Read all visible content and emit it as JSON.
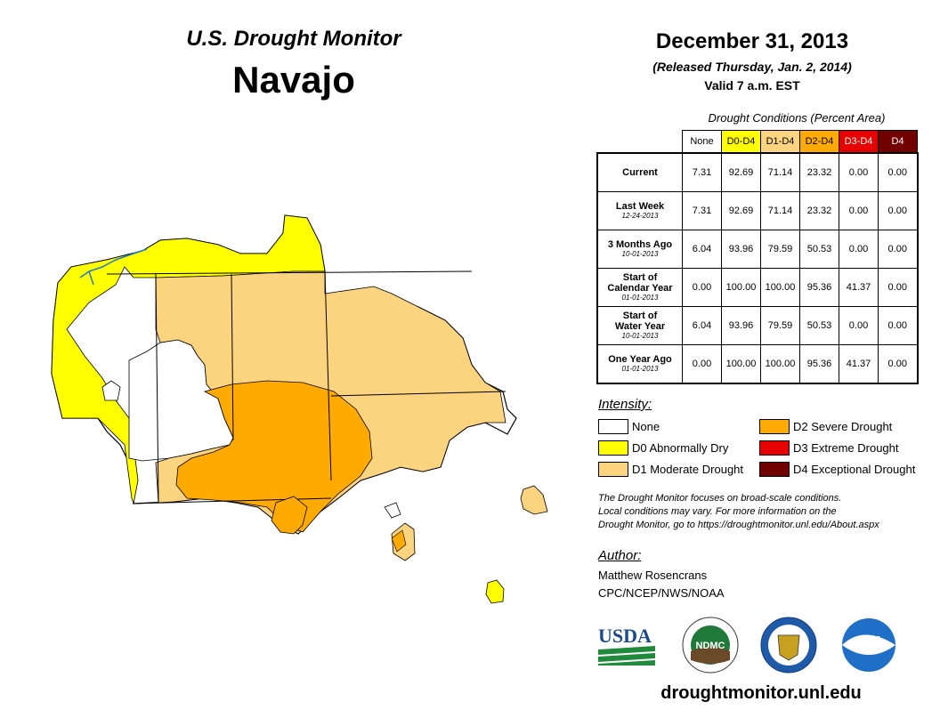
{
  "header": {
    "title": "U.S. Drought Monitor",
    "region": "Navajo",
    "date": "December 31, 2013",
    "released": "(Released Thursday, Jan. 2, 2014)",
    "valid": "Valid 7 a.m. EST"
  },
  "table": {
    "caption": "Drought Conditions (Percent Area)",
    "columns": [
      {
        "label": "None",
        "bg": "#ffffff",
        "fg": "#000000"
      },
      {
        "label": "D0-D4",
        "bg": "#ffff00",
        "fg": "#000000"
      },
      {
        "label": "D1-D4",
        "bg": "#fcd37f",
        "fg": "#000000"
      },
      {
        "label": "D2-D4",
        "bg": "#ffaa00",
        "fg": "#000000"
      },
      {
        "label": "D3-D4",
        "bg": "#e60000",
        "fg": "#ffffff"
      },
      {
        "label": "D4",
        "bg": "#730000",
        "fg": "#ffffff"
      }
    ],
    "rows": [
      {
        "label": "Current",
        "label2": "",
        "sub": "",
        "values": [
          "7.31",
          "92.69",
          "71.14",
          "23.32",
          "0.00",
          "0.00"
        ]
      },
      {
        "label": "Last Week",
        "label2": "",
        "sub": "12-24-2013",
        "values": [
          "7.31",
          "92.69",
          "71.14",
          "23.32",
          "0.00",
          "0.00"
        ]
      },
      {
        "label": "3 Months Ago",
        "label2": "",
        "sub": "10-01-2013",
        "values": [
          "6.04",
          "93.96",
          "79.59",
          "50.53",
          "0.00",
          "0.00"
        ]
      },
      {
        "label": "Start of",
        "label2": "Calendar Year",
        "sub": "01-01-2013",
        "values": [
          "0.00",
          "100.00",
          "100.00",
          "95.36",
          "41.37",
          "0.00"
        ]
      },
      {
        "label": "Start of",
        "label2": "Water Year",
        "sub": "10-01-2013",
        "values": [
          "6.04",
          "93.96",
          "79.59",
          "50.53",
          "0.00",
          "0.00"
        ]
      },
      {
        "label": "One Year Ago",
        "label2": "",
        "sub": "01-01-2013",
        "values": [
          "0.00",
          "100.00",
          "100.00",
          "95.36",
          "41.37",
          "0.00"
        ]
      }
    ]
  },
  "legend": {
    "heading": "Intensity:",
    "items": [
      {
        "label": "None",
        "color": "#ffffff"
      },
      {
        "label": "D0 Abnormally Dry",
        "color": "#ffff00"
      },
      {
        "label": "D1 Moderate Drought",
        "color": "#fcd37f"
      },
      {
        "label": "D2 Severe Drought",
        "color": "#ffaa00"
      },
      {
        "label": "D3 Extreme Drought",
        "color": "#e60000"
      },
      {
        "label": "D4 Exceptional Drought",
        "color": "#730000"
      }
    ]
  },
  "note": {
    "line1": "The Drought Monitor focuses on broad-scale conditions.",
    "line2": "Local conditions may vary. For more information on the",
    "line3": "Drought Monitor, go to https://droughtmonitor.unl.edu/About.aspx"
  },
  "author": {
    "heading": "Author:",
    "name": "Matthew Rosencrans",
    "org": "CPC/NCEP/NWS/NOAA"
  },
  "logos": {
    "usda": "USDA",
    "ndmc": "NDMC",
    "noaa": "NOAA"
  },
  "footer": {
    "url": "droughtmonitor.unl.edu"
  }
}
